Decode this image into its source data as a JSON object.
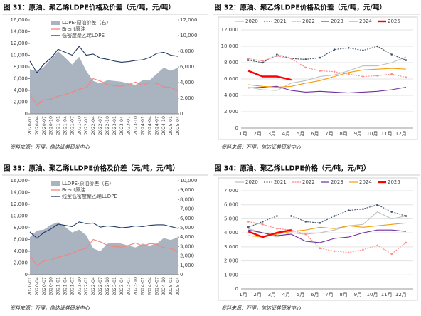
{
  "chart_data": [
    {
      "type": "combo",
      "title": "图 31：原油、聚乙烯LDPE价格及价差（元/吨，元/吨）",
      "source": "资料来源：万得，信达证券研发中心",
      "categories": [
        "2020-01",
        "2020-04",
        "2020-07",
        "2020-10",
        "2021-01",
        "2021-04",
        "2021-07",
        "2021-10",
        "2022-01",
        "2022-04",
        "2022-07",
        "2022-10",
        "2023-01",
        "2023-04",
        "2023-07",
        "2023-10",
        "2024-01",
        "2024-04",
        "2024-07",
        "2024-10",
        "2025-01",
        "2025-04"
      ],
      "series": [
        {
          "name": "LDPE-原油价差（右）",
          "color": "#aab3c0",
          "type": "area",
          "axis": "y2",
          "values": [
            5700,
            5500,
            6000,
            7000,
            8000,
            7200,
            6300,
            7300,
            5500,
            4200,
            3900,
            4300,
            4200,
            4100,
            3900,
            3700,
            4300,
            4300,
            5100,
            5900,
            5500,
            5900
          ]
        },
        {
          "name": "Brent原油",
          "color": "#f4837d",
          "type": "line",
          "values": [
            3300,
            1500,
            2400,
            2500,
            3000,
            3300,
            3700,
            4200,
            4500,
            6000,
            5600,
            5000,
            4800,
            4700,
            5000,
            5400,
            4900,
            5300,
            5200,
            4600,
            4500,
            3900
          ]
        },
        {
          "name": "低密度聚乙烯LDPE",
          "color": "#1f3864",
          "type": "line",
          "values": [
            9000,
            7000,
            8500,
            9500,
            11000,
            10500,
            10000,
            11500,
            10000,
            10200,
            9500,
            9300,
            9000,
            8800,
            8900,
            9100,
            9200,
            9600,
            10300,
            10500,
            10000,
            9800
          ]
        }
      ],
      "ylim": [
        0,
        16000
      ],
      "yticks": [
        0,
        {
          "value": 2000,
          "label": "2,000"
        },
        {
          "value": 4000,
          "label": "4,000"
        },
        {
          "value": 6000,
          "label": "6,000"
        },
        {
          "value": 8000,
          "label": "8,000"
        },
        {
          "value": 10000,
          "label": "10,000"
        },
        {
          "value": 12000,
          "label": "12,000"
        },
        {
          "value": 14000,
          "label": "14,000"
        },
        {
          "value": 16000,
          "label": "16,000"
        }
      ],
      "y2lim": [
        0,
        12000
      ],
      "y2ticks": [
        0,
        {
          "value": 2000,
          "label": "2,000"
        },
        {
          "value": 4000,
          "label": "4,000"
        },
        {
          "value": 6000,
          "label": "6,000"
        },
        {
          "value": 8000,
          "label": "8,000"
        },
        {
          "value": 10000,
          "label": "10,000"
        },
        {
          "value": 12000,
          "label": "12,000"
        }
      ]
    },
    {
      "type": "season",
      "title": "图 32：原油、聚乙烯LDPE价格及价差（元/吨，元/吨）",
      "source": "资料来源：万得，信达证券研发中心",
      "categories": [
        "1月",
        "2月",
        "3月",
        "4月",
        "5月",
        "6月",
        "7月",
        "8月",
        "9月",
        "10月",
        "11月",
        "12月"
      ],
      "series": [
        {
          "name": "2020",
          "color": "#bfbfbf",
          "values": [
            5000,
            4700,
            4600,
            5500,
            5800,
            6300,
            6500,
            7000,
            7600,
            7600,
            8000,
            8700
          ]
        },
        {
          "name": "2021",
          "color": "#44546a",
          "dash": true,
          "marker": true,
          "values": [
            8300,
            8000,
            9000,
            8500,
            8400,
            8600,
            9600,
            9800,
            9500,
            10000,
            9000,
            8300
          ]
        },
        {
          "name": "2022",
          "color": "#ff8b8b",
          "dash": true,
          "marker": true,
          "values": [
            8500,
            8200,
            8800,
            8500,
            7400,
            7000,
            6900,
            6600,
            6300,
            6400,
            6600,
            6200
          ]
        },
        {
          "name": "2023",
          "color": "#7030a0",
          "values": [
            4900,
            5000,
            5100,
            4600,
            4400,
            4500,
            4400,
            4300,
            4400,
            4500,
            4700,
            5000
          ]
        },
        {
          "name": "2024",
          "color": "#f59d0e",
          "values": [
            5300,
            5100,
            5000,
            5100,
            5500,
            5800,
            6300,
            6800,
            7100,
            7200,
            7300,
            7200
          ]
        },
        {
          "name": "2025",
          "color": "#ff0000",
          "thick": true,
          "values": [
            7000,
            6300,
            6300,
            5900,
            null,
            null,
            null,
            null,
            null,
            null,
            null,
            null
          ]
        }
      ],
      "ylim": [
        0,
        12000
      ],
      "yticks": [
        0,
        {
          "value": 2000,
          "label": "2,000"
        },
        {
          "value": 4000,
          "label": "4,000"
        },
        {
          "value": 6000,
          "label": "6,000"
        },
        {
          "value": 8000,
          "label": "8,000"
        },
        {
          "value": 10000,
          "label": "10,000"
        },
        {
          "value": 12000,
          "label": "12,000"
        }
      ],
      "grid": true
    },
    {
      "type": "combo",
      "title": "图 33：原油、聚乙烯LLDPE价格及价差（元/吨，元/吨）",
      "source": "资料来源：万得，信达证券研发中心",
      "categories": [
        "2020-01",
        "2020-04",
        "2020-07",
        "2020-10",
        "2021-01",
        "2021-04",
        "2021-07",
        "2021-10",
        "2022-01",
        "2022-04",
        "2022-07",
        "2022-10",
        "2023-01",
        "2023-04",
        "2023-07",
        "2023-10",
        "2024-01",
        "2024-04",
        "2024-07",
        "2024-10",
        "2025-01",
        "2025-04"
      ],
      "series": [
        {
          "name": "LLDPE-原油价差（右）",
          "color": "#aab3c0",
          "type": "area",
          "axis": "y2",
          "values": [
            4000,
            4700,
            4800,
            5300,
            5600,
            5100,
            4500,
            4800,
            4200,
            2800,
            2500,
            3300,
            3400,
            3300,
            3100,
            2900,
            3300,
            3100,
            3300,
            3900,
            3700,
            4000
          ]
        },
        {
          "name": "Brent原油",
          "color": "#f4837d",
          "type": "line",
          "values": [
            3300,
            1500,
            2400,
            2500,
            3000,
            3300,
            3700,
            4200,
            4500,
            6000,
            5600,
            5000,
            4800,
            4700,
            5000,
            5400,
            4900,
            5300,
            5200,
            4600,
            4500,
            3900
          ]
        },
        {
          "name": "线型低密度聚乙烯LLDPE",
          "color": "#1f3864",
          "type": "line",
          "values": [
            7300,
            6200,
            7200,
            7800,
            8600,
            8400,
            8200,
            9000,
            8700,
            8800,
            8100,
            8300,
            8200,
            8000,
            8100,
            8300,
            8200,
            8400,
            8500,
            8500,
            8200,
            7900
          ]
        }
      ],
      "ylim": [
        0,
        16000
      ],
      "yticks": [
        0,
        {
          "value": 2000,
          "label": "2,000"
        },
        {
          "value": 4000,
          "label": "4,000"
        },
        {
          "value": 6000,
          "label": "6,000"
        },
        {
          "value": 8000,
          "label": "8,000"
        },
        {
          "value": 10000,
          "label": "10,000"
        },
        {
          "value": 12000,
          "label": "12,000"
        },
        {
          "value": 14000,
          "label": "14,000"
        },
        {
          "value": 16000,
          "label": "16,000"
        }
      ],
      "y2lim": [
        0,
        10000
      ],
      "y2ticks": [
        0,
        {
          "value": 1000,
          "label": "1,000"
        },
        {
          "value": 2000,
          "label": "2,000"
        },
        {
          "value": 3000,
          "label": "3,000"
        },
        {
          "value": 4000,
          "label": "4,000"
        },
        {
          "value": 5000,
          "label": "5,000"
        },
        {
          "value": 6000,
          "label": "6,000"
        },
        {
          "value": 7000,
          "label": "7,000"
        },
        {
          "value": 8000,
          "label": "8,000"
        },
        {
          "value": 9000,
          "label": "9,000"
        },
        {
          "value": 10000,
          "label": "10,000"
        }
      ]
    },
    {
      "type": "season",
      "title": "图 34：原油、聚乙烯LLDPE价格（元/吨，元/吨）",
      "source": "资料来源：万得，信达证券研发中心",
      "categories": [
        "1月",
        "2月",
        "3月",
        "4月",
        "5月",
        "6月",
        "7月",
        "8月",
        "9月",
        "10月",
        "11月",
        "12月"
      ],
      "series": [
        {
          "name": "2020",
          "color": "#bfbfbf",
          "values": [
            4300,
            4000,
            3700,
            4000,
            3900,
            4000,
            4200,
            4500,
            4600,
            5500,
            5000,
            5200
          ]
        },
        {
          "name": "2021",
          "color": "#44546a",
          "dash": true,
          "marker": true,
          "values": [
            4400,
            4800,
            5200,
            5200,
            4800,
            4700,
            5200,
            5600,
            5700,
            6000,
            5500,
            5200
          ]
        },
        {
          "name": "2022",
          "color": "#ff8b8b",
          "dash": true,
          "marker": true,
          "values": [
            4800,
            4600,
            4300,
            4200,
            3900,
            2900,
            2700,
            2600,
            2800,
            3100,
            2500,
            3300
          ]
        },
        {
          "name": "2023",
          "color": "#7030a0",
          "values": [
            4200,
            4000,
            3800,
            3900,
            3400,
            3300,
            3600,
            3700,
            4000,
            4200,
            4200,
            4100
          ]
        },
        {
          "name": "2024",
          "color": "#f59d0e",
          "values": [
            3800,
            3700,
            3900,
            4100,
            4200,
            4400,
            4300,
            4500,
            4400,
            4500,
            4600,
            4700
          ]
        },
        {
          "name": "2025",
          "color": "#ff0000",
          "thick": true,
          "values": [
            4100,
            3700,
            4000,
            4200,
            null,
            null,
            null,
            null,
            null,
            null,
            null,
            null
          ]
        }
      ],
      "ylim": [
        0,
        7000
      ],
      "yticks": [
        0,
        {
          "value": 1000,
          "label": "1,000"
        },
        {
          "value": 2000,
          "label": "2,000"
        },
        {
          "value": 3000,
          "label": "3,000"
        },
        {
          "value": 4000,
          "label": "4,000"
        },
        {
          "value": 5000,
          "label": "5,000"
        },
        {
          "value": 6000,
          "label": "6,000"
        },
        {
          "value": 7000,
          "label": "7,000"
        }
      ],
      "grid": true
    }
  ]
}
